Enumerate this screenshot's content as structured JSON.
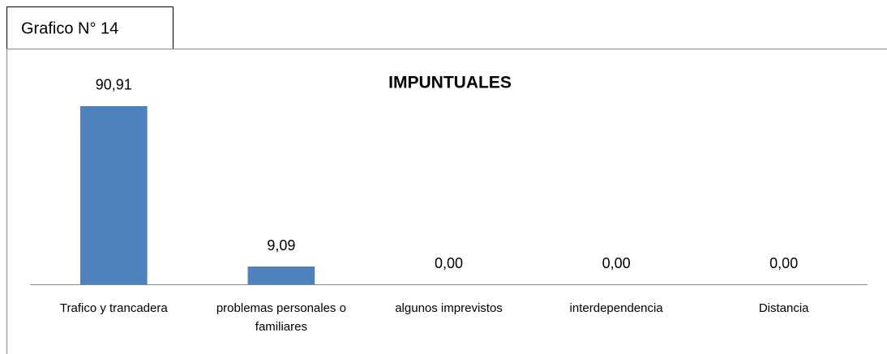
{
  "chart_data": {
    "type": "bar",
    "caption": "Grafico N° 14",
    "title": "IMPUNTUALES",
    "categories": [
      "Trafico y trancadera",
      "problemas personales o familiares",
      "algunos imprevistos",
      "interdependencia",
      "Distancia"
    ],
    "values": [
      90.91,
      9.09,
      0,
      0,
      0
    ],
    "value_labels": [
      "90,91",
      "9,09",
      "0,00",
      "0,00",
      "0,00"
    ],
    "color": "#4f81bd",
    "ylim": [
      0,
      100
    ]
  }
}
